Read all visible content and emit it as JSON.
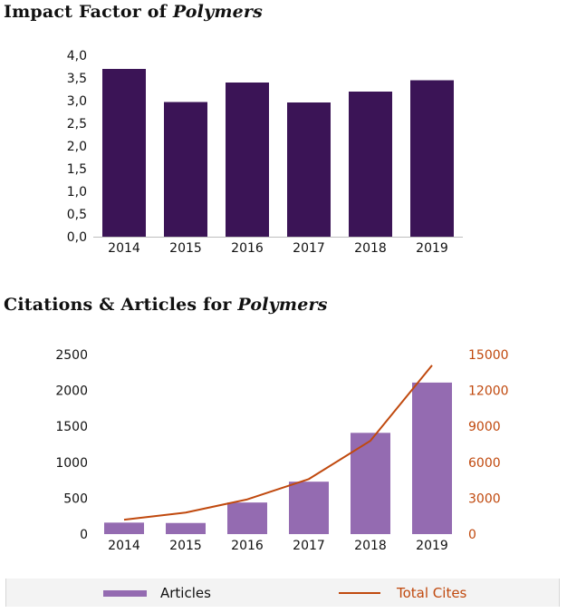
{
  "colors": {
    "impact_bar": "#3b1456",
    "articles_bar": "#946bb1",
    "cites_line": "#c0490e",
    "cites_axis_text": "#c0490e"
  },
  "titles": {
    "impact_prefix": "Impact Factor of ",
    "impact_journal": "Polymers",
    "citations_prefix": "Citations & Articles for ",
    "citations_journal": "Polymers"
  },
  "legend": {
    "articles_label": "Articles",
    "cites_label": "Total Cites"
  },
  "chart_data": [
    {
      "type": "bar",
      "categories": [
        "2014",
        "2015",
        "2016",
        "2017",
        "2018",
        "2019"
      ],
      "values": [
        3.7,
        2.97,
        3.4,
        2.96,
        3.2,
        3.45
      ],
      "ylim": [
        0,
        4
      ],
      "yticks": [
        "0,0",
        "0,5",
        "1,0",
        "1,5",
        "2,0",
        "2,5",
        "3,0",
        "3,5",
        "4,0"
      ],
      "grid": false,
      "legend": "none"
    },
    {
      "type": "bar",
      "categories": [
        "2014",
        "2015",
        "2016",
        "2017",
        "2018",
        "2019"
      ],
      "series": [
        {
          "name": "Articles",
          "type": "bar",
          "axis": "left",
          "values": [
            160,
            155,
            440,
            730,
            1410,
            2110
          ]
        },
        {
          "name": "Total Cites",
          "type": "line",
          "axis": "right",
          "values": [
            1200,
            1800,
            2900,
            4600,
            7800,
            14100
          ]
        }
      ],
      "ylim_left": [
        0,
        2500
      ],
      "ylim_right": [
        0,
        15000
      ],
      "yticks_left": [
        "0",
        "500",
        "1000",
        "1500",
        "2000",
        "2500"
      ],
      "yticks_right": [
        "0",
        "3000",
        "6000",
        "9000",
        "12000",
        "15000"
      ],
      "grid": false,
      "legend": "bottom"
    }
  ]
}
